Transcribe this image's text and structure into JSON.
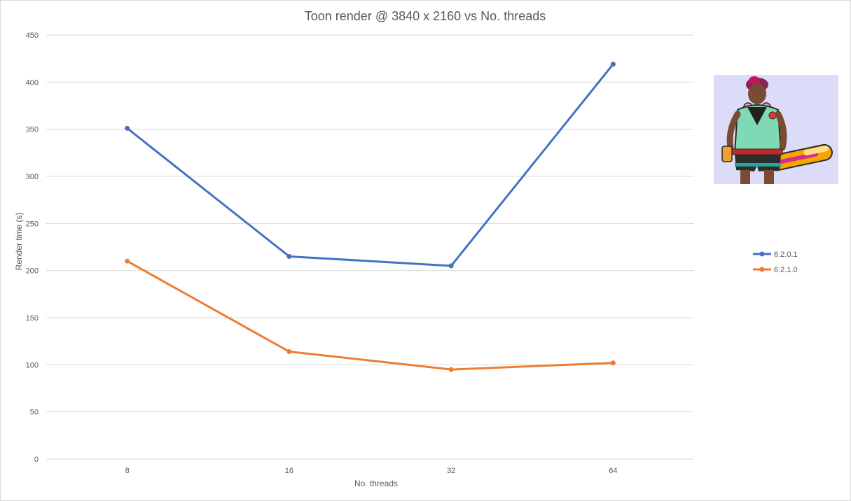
{
  "chart_data": {
    "type": "line",
    "title": "Toon render @ 3840 x 2160 vs No. threads",
    "xlabel": "No. threads",
    "ylabel": "Render time (s)",
    "categories": [
      "8",
      "16",
      "32",
      "64"
    ],
    "ylim": [
      0,
      450
    ],
    "yticks": [
      0,
      50,
      100,
      150,
      200,
      250,
      300,
      350,
      400,
      450
    ],
    "grid": true,
    "legend": "right",
    "series": [
      {
        "name": "6.2.0.1",
        "color": "#4472c4",
        "values": [
          351,
          215,
          205,
          419
        ]
      },
      {
        "name": "6.2.1.0",
        "color": "#ed7d31",
        "values": [
          210,
          114,
          95,
          102
        ]
      }
    ]
  },
  "illustration": {
    "icon": "toon-character-illustration",
    "background": "#dcdcf8"
  }
}
